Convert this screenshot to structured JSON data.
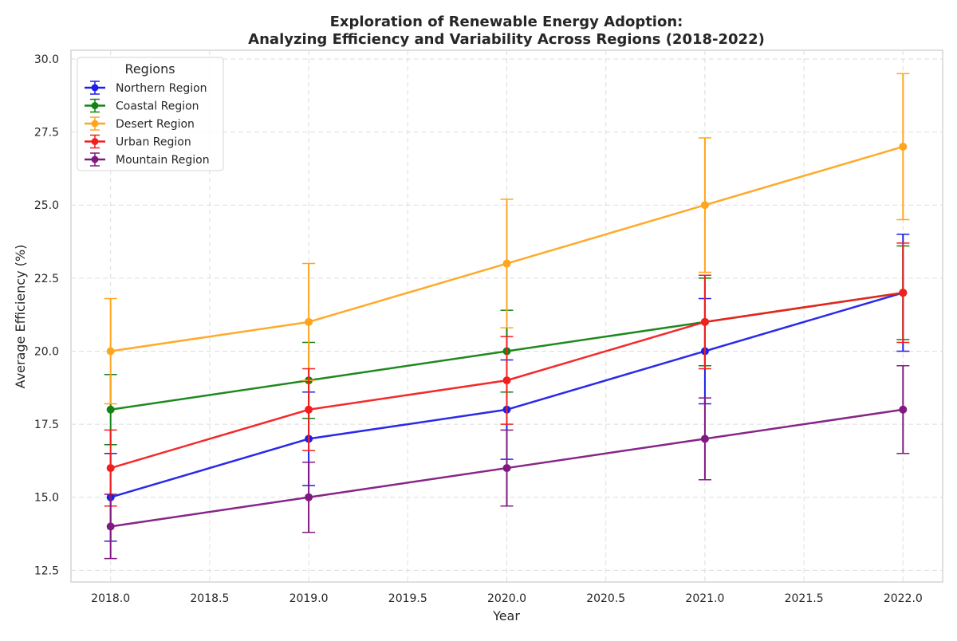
{
  "chart_data": {
    "type": "line",
    "title_line1": "Exploration of Renewable Energy Adoption:",
    "title_line2": "Analyzing Efficiency and Variability Across Regions (2018-2022)",
    "xlabel": "Year",
    "ylabel": "Average Efficiency (%)",
    "xlim": [
      2017.8,
      2022.2
    ],
    "ylim": [
      12.1,
      30.3
    ],
    "x_ticks": [
      "2018.0",
      "2018.5",
      "2019.0",
      "2019.5",
      "2020.0",
      "2020.5",
      "2021.0",
      "2021.5",
      "2022.0"
    ],
    "y_ticks": [
      "12.5",
      "15.0",
      "17.5",
      "20.0",
      "22.5",
      "25.0",
      "27.5",
      "30.0"
    ],
    "grid": true,
    "legend_title": "Regions",
    "legend_position": "top-left",
    "x": [
      2018,
      2019,
      2020,
      2021,
      2022
    ],
    "series": [
      {
        "name": "Northern Region",
        "color": "#1f1fe8",
        "values": [
          15,
          17,
          18,
          20,
          22
        ],
        "errors": [
          1.5,
          1.6,
          1.7,
          1.8,
          2.0
        ]
      },
      {
        "name": "Coastal Region",
        "color": "#138313",
        "values": [
          18,
          19,
          20,
          21,
          22
        ],
        "errors": [
          1.2,
          1.3,
          1.4,
          1.5,
          1.6
        ]
      },
      {
        "name": "Desert Region",
        "color": "#ffa51f",
        "values": [
          20,
          21,
          23,
          25,
          27
        ],
        "errors": [
          1.8,
          2.0,
          2.2,
          2.3,
          2.5
        ]
      },
      {
        "name": "Urban Region",
        "color": "#f21f1f",
        "values": [
          16,
          18,
          19,
          21,
          22
        ],
        "errors": [
          1.3,
          1.4,
          1.5,
          1.6,
          1.7
        ]
      },
      {
        "name": "Mountain Region",
        "color": "#801a80",
        "values": [
          14,
          15,
          16,
          17,
          18
        ],
        "errors": [
          1.1,
          1.2,
          1.3,
          1.4,
          1.5
        ]
      }
    ]
  }
}
